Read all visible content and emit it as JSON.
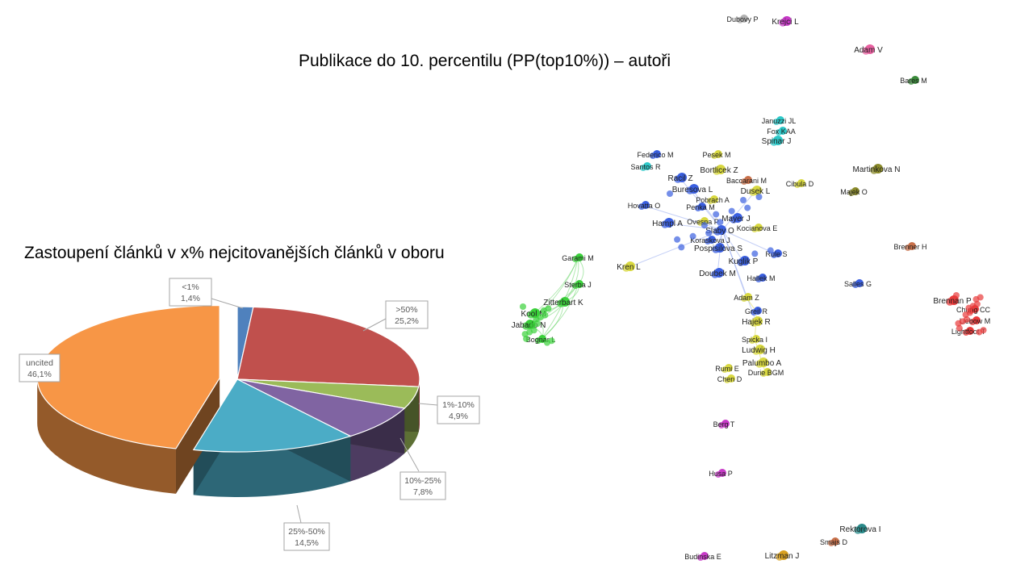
{
  "slide": {
    "title": "Publikace do 10. percentilu (PP(top10%)) – autoři",
    "pie_title": "Zastoupení článků v x% nejcitovanějších článků v oboru"
  },
  "chart_data": [
    {
      "type": "pie",
      "title": "Zastoupení článků v x% nejcitovanějších článků v oboru",
      "style": "3d-exploded",
      "slices": [
        {
          "label": "<1%",
          "value": 1.4,
          "value_text": "1,4%",
          "color": "#4f81bd"
        },
        {
          "label": ">50%",
          "value": 25.2,
          "value_text": "25,2%",
          "color": "#c0504d"
        },
        {
          "label": "1%-10%",
          "value": 4.9,
          "value_text": "4,9%",
          "color": "#9bbb59"
        },
        {
          "label": "10%-25%",
          "value": 7.8,
          "value_text": "7,8%",
          "color": "#8064a2"
        },
        {
          "label": "25%-50%",
          "value": 14.5,
          "value_text": "14,5%",
          "color": "#4bacc6"
        },
        {
          "label": "uncited",
          "value": 46.1,
          "value_text": "46,1%",
          "color": "#f79646"
        }
      ]
    },
    {
      "type": "network",
      "title": "Publikace do 10. percentilu (PP(top10%)) – autoři",
      "clusters": [
        {
          "name": "blue",
          "color": "#3a5fe0"
        },
        {
          "name": "yellow",
          "color": "#d8d840"
        },
        {
          "name": "green",
          "color": "#3ad13a"
        },
        {
          "name": "red",
          "color": "#e83a3a"
        },
        {
          "name": "cyan",
          "color": "#2cc8c8"
        },
        {
          "name": "olive",
          "color": "#8a8a2a"
        },
        {
          "name": "magenta",
          "color": "#c83ac8"
        },
        {
          "name": "pink",
          "color": "#e860a0"
        },
        {
          "name": "darkgreen",
          "color": "#3a8a3a"
        },
        {
          "name": "teal",
          "color": "#2a8a8a"
        },
        {
          "name": "gold",
          "color": "#d8a020"
        },
        {
          "name": "gray",
          "color": "#b0b0b0"
        },
        {
          "name": "brown",
          "color": "#c8704a"
        }
      ],
      "nodes": [
        {
          "label": "Dubovy P",
          "cluster": "gray"
        },
        {
          "label": "Krejci L",
          "cluster": "magenta"
        },
        {
          "label": "Adam V",
          "cluster": "pink"
        },
        {
          "label": "Bares M",
          "cluster": "darkgreen"
        },
        {
          "label": "Januzzi JL",
          "cluster": "cyan"
        },
        {
          "label": "Fox KAA",
          "cluster": "cyan"
        },
        {
          "label": "Spinar J",
          "cluster": "cyan"
        },
        {
          "label": "Federico M",
          "cluster": "blue"
        },
        {
          "label": "Santos R",
          "cluster": "cyan"
        },
        {
          "label": "Pesek M",
          "cluster": "yellow"
        },
        {
          "label": "Bortlicek Z",
          "cluster": "yellow"
        },
        {
          "label": "Baccarani M",
          "cluster": "brown"
        },
        {
          "label": "Racil Z",
          "cluster": "blue"
        },
        {
          "label": "Buresova L",
          "cluster": "blue"
        },
        {
          "label": "Dusek L",
          "cluster": "yellow"
        },
        {
          "label": "Cibula D",
          "cluster": "yellow"
        },
        {
          "label": "Martinkova N",
          "cluster": "olive"
        },
        {
          "label": "Majek O",
          "cluster": "olive"
        },
        {
          "label": "Pobrach A",
          "cluster": "yellow"
        },
        {
          "label": "Hovatta O",
          "cluster": "blue"
        },
        {
          "label": "Penka M",
          "cluster": "blue"
        },
        {
          "label": "Hampl A",
          "cluster": "blue"
        },
        {
          "label": "Ovesna P",
          "cluster": "yellow"
        },
        {
          "label": "Mayer J",
          "cluster": "blue"
        },
        {
          "label": "Slaby O",
          "cluster": "blue"
        },
        {
          "label": "Kocianova E",
          "cluster": "yellow"
        },
        {
          "label": "Koraskova J",
          "cluster": "blue"
        },
        {
          "label": "Pospisilova S",
          "cluster": "blue"
        },
        {
          "label": "Rule S",
          "cluster": "blue"
        },
        {
          "label": "Brenner H",
          "cluster": "brown"
        },
        {
          "label": "Garami M",
          "cluster": "green"
        },
        {
          "label": "Kuglik P",
          "cluster": "blue"
        },
        {
          "label": "Kren L",
          "cluster": "yellow"
        },
        {
          "label": "Doubek M",
          "cluster": "blue"
        },
        {
          "label": "Hallek M",
          "cluster": "blue"
        },
        {
          "label": "Sterba J",
          "cluster": "green"
        },
        {
          "label": "Salles G",
          "cluster": "blue"
        },
        {
          "label": "Zitterbart K",
          "cluster": "green"
        },
        {
          "label": "Adam Z",
          "cluster": "yellow"
        },
        {
          "label": "Brennan P",
          "cluster": "red"
        },
        {
          "label": "Chung CC",
          "cluster": "red"
        },
        {
          "label": "Kool M",
          "cluster": "green"
        },
        {
          "label": "Greil R",
          "cluster": "blue"
        },
        {
          "label": "Liebow M",
          "cluster": "red"
        },
        {
          "label": "Jabado N",
          "cluster": "green"
        },
        {
          "label": "Hajek R",
          "cluster": "yellow"
        },
        {
          "label": "Lightfoot T",
          "cluster": "red"
        },
        {
          "label": "Bognar L",
          "cluster": "green"
        },
        {
          "label": "Spicka I",
          "cluster": "yellow"
        },
        {
          "label": "Ludwig H",
          "cluster": "yellow"
        },
        {
          "label": "Palumbo A",
          "cluster": "yellow"
        },
        {
          "label": "Rumi E",
          "cluster": "yellow"
        },
        {
          "label": "Chen D",
          "cluster": "yellow"
        },
        {
          "label": "Durie BGM",
          "cluster": "yellow"
        },
        {
          "label": "Berg T",
          "cluster": "magenta"
        },
        {
          "label": "Husa P",
          "cluster": "magenta"
        },
        {
          "label": "Rektorova I",
          "cluster": "teal"
        },
        {
          "label": "Smajs D",
          "cluster": "brown"
        },
        {
          "label": "Budinska E",
          "cluster": "magenta"
        },
        {
          "label": "Litzman J",
          "cluster": "gold"
        }
      ]
    }
  ]
}
